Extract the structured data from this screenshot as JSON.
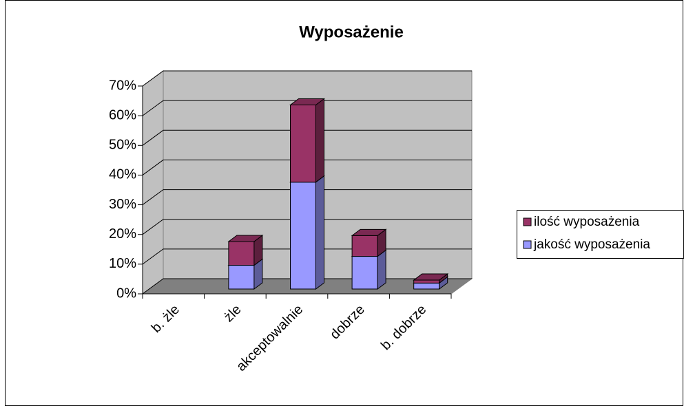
{
  "chart_data": {
    "type": "bar",
    "stacked": true,
    "title": "Wyposażenie",
    "categories": [
      "b. żle",
      "żle",
      "akceptowalnie",
      "dobrze",
      "b. dobrze"
    ],
    "series": [
      {
        "name": "jakość wyposażenia",
        "color": "#9999ff",
        "values": [
          0,
          8,
          36,
          11,
          2
        ]
      },
      {
        "name": "ilość wyposażenia",
        "color": "#993366",
        "values": [
          0,
          8,
          26,
          7,
          1
        ]
      }
    ],
    "ylim": [
      0,
      70
    ],
    "yticks": [
      {
        "value": 0,
        "label": "0%"
      },
      {
        "value": 10,
        "label": "10%"
      },
      {
        "value": 20,
        "label": "20%"
      },
      {
        "value": 30,
        "label": "30%"
      },
      {
        "value": 40,
        "label": "40%"
      },
      {
        "value": 50,
        "label": "50%"
      },
      {
        "value": 60,
        "label": "60%"
      },
      {
        "value": 70,
        "label": "70%"
      }
    ],
    "grid": true,
    "legend": "right"
  }
}
